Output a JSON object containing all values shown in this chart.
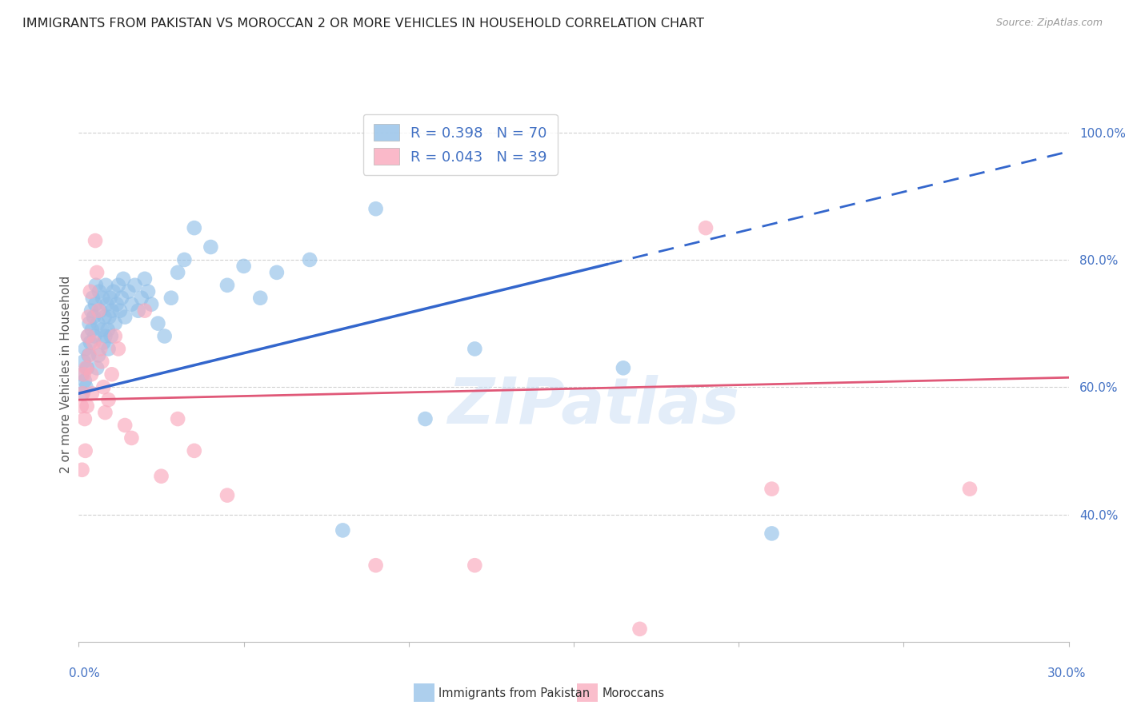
{
  "title": "IMMIGRANTS FROM PAKISTAN VS MOROCCAN 2 OR MORE VEHICLES IN HOUSEHOLD CORRELATION CHART",
  "source": "Source: ZipAtlas.com",
  "ylabel": "2 or more Vehicles in Household",
  "xmin": 0.0,
  "xmax": 30.0,
  "ymin": 20.0,
  "ymax": 104.0,
  "yticks": [
    40.0,
    60.0,
    80.0,
    100.0
  ],
  "pakistan_color": "#92c0e8",
  "morocco_color": "#f9a8bc",
  "pakistan_trend_color": "#3366cc",
  "morocco_trend_color": "#e05878",
  "pakistan_scatter_x": [
    0.1,
    0.12,
    0.15,
    0.18,
    0.2,
    0.22,
    0.25,
    0.28,
    0.3,
    0.32,
    0.35,
    0.38,
    0.4,
    0.42,
    0.45,
    0.48,
    0.5,
    0.52,
    0.55,
    0.58,
    0.6,
    0.62,
    0.65,
    0.7,
    0.72,
    0.75,
    0.78,
    0.8,
    0.82,
    0.85,
    0.88,
    0.9,
    0.92,
    0.95,
    0.98,
    1.0,
    1.05,
    1.1,
    1.15,
    1.2,
    1.25,
    1.3,
    1.35,
    1.4,
    1.5,
    1.6,
    1.7,
    1.8,
    1.9,
    2.0,
    2.1,
    2.2,
    2.4,
    2.6,
    2.8,
    3.0,
    3.2,
    3.5,
    4.0,
    4.5,
    5.0,
    5.5,
    6.0,
    7.0,
    8.0,
    9.0,
    10.5,
    12.0,
    16.5,
    21.0
  ],
  "pakistan_scatter_y": [
    62.0,
    59.0,
    64.0,
    61.0,
    66.0,
    60.0,
    63.0,
    68.0,
    65.0,
    70.0,
    67.0,
    72.0,
    69.0,
    74.0,
    71.0,
    68.0,
    73.0,
    76.0,
    63.0,
    70.0,
    65.0,
    75.0,
    72.0,
    69.0,
    74.0,
    67.0,
    71.0,
    68.0,
    76.0,
    73.0,
    69.0,
    66.0,
    71.0,
    74.0,
    68.0,
    72.0,
    75.0,
    70.0,
    73.0,
    76.0,
    72.0,
    74.0,
    77.0,
    71.0,
    75.0,
    73.0,
    76.0,
    72.0,
    74.0,
    77.0,
    75.0,
    73.0,
    70.0,
    68.0,
    74.0,
    78.0,
    80.0,
    85.0,
    82.0,
    76.0,
    79.0,
    74.0,
    78.0,
    80.0,
    37.5,
    88.0,
    55.0,
    66.0,
    63.0,
    37.0
  ],
  "morocco_scatter_x": [
    0.08,
    0.1,
    0.12,
    0.15,
    0.18,
    0.2,
    0.22,
    0.25,
    0.28,
    0.3,
    0.32,
    0.35,
    0.38,
    0.4,
    0.45,
    0.5,
    0.55,
    0.6,
    0.65,
    0.7,
    0.75,
    0.8,
    0.9,
    1.0,
    1.1,
    1.2,
    1.4,
    1.6,
    2.0,
    2.5,
    3.0,
    3.5,
    4.5,
    9.0,
    12.0,
    17.0,
    19.0,
    21.0,
    27.0
  ],
  "morocco_scatter_y": [
    57.0,
    47.0,
    59.0,
    62.0,
    55.0,
    50.0,
    63.0,
    57.0,
    68.0,
    71.0,
    65.0,
    75.0,
    62.0,
    59.0,
    67.0,
    83.0,
    78.0,
    72.0,
    66.0,
    64.0,
    60.0,
    56.0,
    58.0,
    62.0,
    68.0,
    66.0,
    54.0,
    52.0,
    72.0,
    46.0,
    55.0,
    50.0,
    43.0,
    32.0,
    32.0,
    22.0,
    85.0,
    44.0,
    44.0
  ],
  "pk_trend_x0": 0.0,
  "pk_trend_x1": 30.0,
  "pk_trend_y0": 59.0,
  "pk_trend_y1": 97.0,
  "pk_dash_start": 16.0,
  "mo_trend_x0": 0.0,
  "mo_trend_x1": 30.0,
  "mo_trend_y0": 58.0,
  "mo_trend_y1": 61.5,
  "watermark": "ZIPatlas",
  "legend_r1": "R = 0.398",
  "legend_n1": "N = 70",
  "legend_r2": "R = 0.043",
  "legend_n2": "N = 39",
  "grid_color": "#d0d0d0",
  "background_color": "#ffffff",
  "title_fontsize": 11.5,
  "ylabel_fontsize": 11,
  "tick_fontsize": 11,
  "legend_fontsize": 13,
  "right_tick_color": "#4472c4",
  "bottom_tick_color": "#4472c4",
  "bottom_legend_label1": "Immigrants from Pakistan",
  "bottom_legend_label2": "Moroccans"
}
